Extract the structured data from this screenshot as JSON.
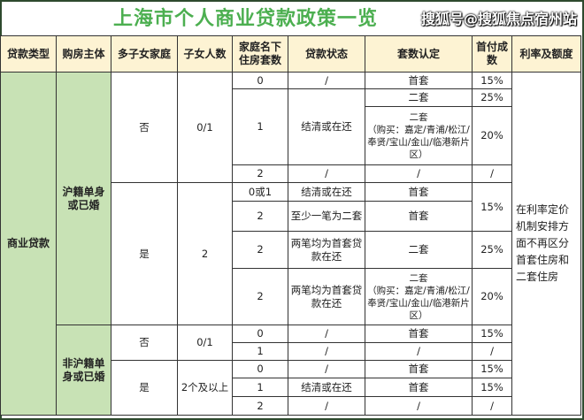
{
  "title": "上海市个人商业贷款政策一览",
  "headers": [
    "贷款类型",
    "购房主体",
    "多子女家庭",
    "子女人数",
    "家庭名下住房套数",
    "贷款状态",
    "套数认定",
    "首付成数",
    "利率及额度"
  ],
  "loan_type": "商业贷款",
  "rate_note": "在利率定价机制安排方面不再区分首套住房和二套住房",
  "groups": {
    "local": {
      "subject": "沪籍单身或已婚",
      "no": {
        "multi": "否",
        "children": "0/1",
        "rows": [
          {
            "houses": "0",
            "status": "/",
            "count": "首套",
            "down": "15%"
          },
          {
            "houses": "1",
            "status": "结清或在还",
            "count": "二套",
            "down": "25%"
          },
          {
            "count": "二套",
            "count_note": "（购买：嘉定/青浦/松江/奉贤/宝山/金山/临港新片区）",
            "down": "20%"
          },
          {
            "houses": "2",
            "status": "/",
            "count": "/",
            "down": "/"
          }
        ]
      },
      "yes": {
        "multi": "是",
        "children": "2",
        "rows": [
          {
            "houses": "0或1",
            "status": "结清或在还",
            "count": "首套",
            "down": "15%"
          },
          {
            "houses": "2",
            "status": "至少一笔为二套",
            "count": "首套"
          },
          {
            "houses": "2",
            "status": "两笔均为首套贷款在还",
            "count": "二套",
            "down": "25%"
          },
          {
            "houses": "2",
            "status": "两笔均为首套贷款在还",
            "count": "二套",
            "count_note": "（购买：嘉定/青浦/松江/奉贤/宝山/金山/临港新片区）",
            "down": "20%"
          }
        ]
      }
    },
    "nonlocal": {
      "subject": "非沪籍单身或已婚",
      "no": {
        "multi": "否",
        "children": "0/1",
        "rows": [
          {
            "houses": "0",
            "status": "/",
            "count": "首套",
            "down": "15%"
          },
          {
            "houses": "1",
            "status": "/",
            "count": "/",
            "down": "/"
          }
        ]
      },
      "yes": {
        "multi": "是",
        "children": "2个及以上",
        "rows": [
          {
            "houses": "0",
            "status": "/",
            "count": "首套",
            "down": "15%"
          },
          {
            "houses": "1",
            "status": "结清或在还",
            "count": "首套",
            "down": "15%"
          },
          {
            "houses": "2",
            "status": "/",
            "count": "/",
            "down": "/"
          }
        ]
      }
    }
  },
  "watermark": "搜狐号@搜狐焦点宿州站",
  "colors": {
    "title": "#4caf50",
    "header_bg": "#fdf3d3",
    "green_cells": "#c8e2b5"
  }
}
